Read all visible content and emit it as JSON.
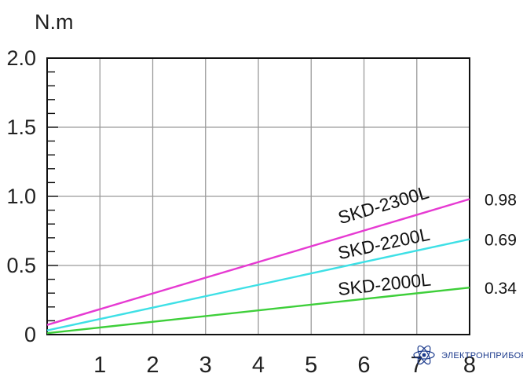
{
  "chart_data": {
    "type": "line",
    "ylabel": "N.m",
    "xlabel": "",
    "xlim": [
      0,
      8
    ],
    "ylim": [
      0,
      2.0
    ],
    "x_ticks": [
      "1",
      "2",
      "3",
      "4",
      "5",
      "6",
      "7",
      "8"
    ],
    "y_ticks": [
      {
        "value": 0,
        "label": "0"
      },
      {
        "value": 0.5,
        "label": "0.5"
      },
      {
        "value": 1.0,
        "label": "1.0"
      },
      {
        "value": 1.5,
        "label": "1.5"
      },
      {
        "value": 2.0,
        "label": "2.0"
      }
    ],
    "grid": true,
    "series": [
      {
        "name": "SKD-2300L",
        "color": "#e63ad2",
        "x": [
          0,
          8
        ],
        "y": [
          0.07,
          0.98
        ],
        "end_label": "0.98"
      },
      {
        "name": "SKD-2200L",
        "color": "#3ee0e6",
        "x": [
          0,
          8
        ],
        "y": [
          0.03,
          0.69
        ],
        "end_label": "0.69"
      },
      {
        "name": "SKD-2000L",
        "color": "#3ecf3a",
        "x": [
          0,
          8
        ],
        "y": [
          0.01,
          0.34
        ],
        "end_label": "0.34"
      }
    ]
  },
  "watermark": {
    "text": "ЭЛЕКТРОНПРИБОР",
    "icon": "atom-logo-icon"
  }
}
